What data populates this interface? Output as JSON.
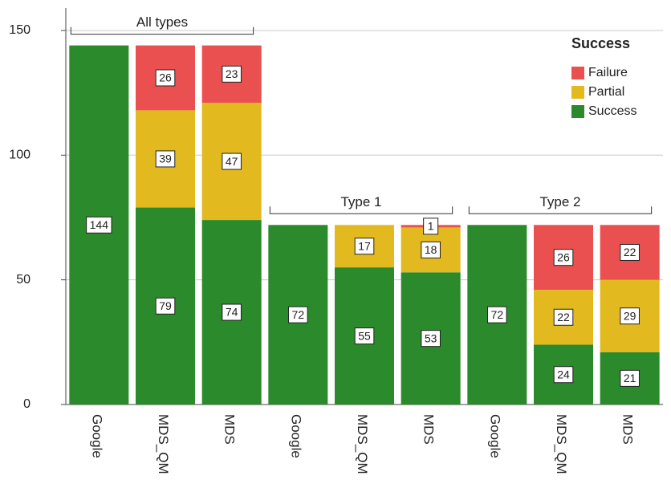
{
  "chart_data": {
    "type": "stacked_bar",
    "categories": [
      "Google",
      "MDS_QM",
      "MDS",
      "Google",
      "MDS_QM",
      "MDS",
      "Google",
      "MDS_QM",
      "MDS"
    ],
    "groups": [
      {
        "name": "All types",
        "from": 0,
        "to": 2
      },
      {
        "name": "Type 1",
        "from": 3,
        "to": 5
      },
      {
        "name": "Type 2",
        "from": 6,
        "to": 8
      }
    ],
    "series": [
      {
        "name": "Success",
        "color": "#2b8a2b",
        "values": [
          144,
          79,
          74,
          72,
          55,
          53,
          72,
          24,
          21
        ]
      },
      {
        "name": "Partial",
        "color": "#e2b91f",
        "values": [
          null,
          39,
          47,
          null,
          17,
          18,
          null,
          22,
          29
        ]
      },
      {
        "name": "Failure",
        "color": "#eb5050",
        "values": [
          null,
          26,
          23,
          null,
          null,
          1,
          null,
          26,
          22
        ]
      }
    ],
    "legend_title": "Success",
    "ylim": [
      0,
      159
    ],
    "yticks": [
      0,
      50,
      100,
      150
    ],
    "grid": true,
    "legend": "upper right"
  }
}
